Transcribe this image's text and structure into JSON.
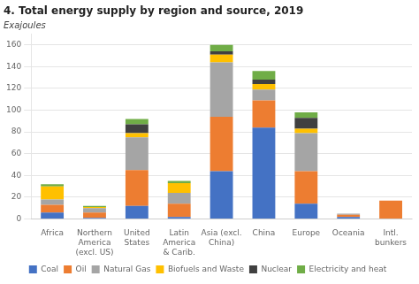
{
  "chart_data": {
    "type": "bar",
    "stacked": true,
    "title": "4. Total energy supply by region and source, 2019",
    "ylabel": "Exajoules",
    "categories": [
      "Africa",
      "Northern\nAmerica\n(excl. US)",
      "United\nStates",
      "Latin\nAmerica\n& Carib.",
      "Asia (excl.\nChina)",
      "China",
      "Europe",
      "Oceania",
      "Intl.\nbunkers"
    ],
    "series": [
      {
        "name": "Coal",
        "color": "#4472c4",
        "values": [
          6,
          1,
          12,
          2,
          44,
          84,
          14,
          2,
          0
        ]
      },
      {
        "name": "Oil",
        "color": "#ed7d31",
        "values": [
          7,
          5,
          33,
          12,
          50,
          25,
          30,
          2,
          17
        ]
      },
      {
        "name": "Natural Gas",
        "color": "#a5a5a5",
        "values": [
          5,
          4,
          30,
          10,
          50,
          10,
          35,
          1,
          0
        ]
      },
      {
        "name": "Biofuels and Waste",
        "color": "#ffc000",
        "values": [
          12,
          1,
          4,
          9,
          7,
          5,
          4,
          0,
          0
        ]
      },
      {
        "name": "Nuclear",
        "color": "#404040",
        "values": [
          0,
          0,
          8,
          0,
          3,
          4,
          10,
          0,
          0
        ]
      },
      {
        "name": "Electricity and heat",
        "color": "#70ad47",
        "values": [
          2,
          1,
          5,
          2,
          6,
          8,
          5,
          0,
          0
        ]
      }
    ],
    "ylim": [
      0,
      170
    ],
    "yticks": [
      0,
      20,
      40,
      60,
      80,
      100,
      120,
      140,
      160
    ],
    "grid": true,
    "legend": "bottom"
  }
}
